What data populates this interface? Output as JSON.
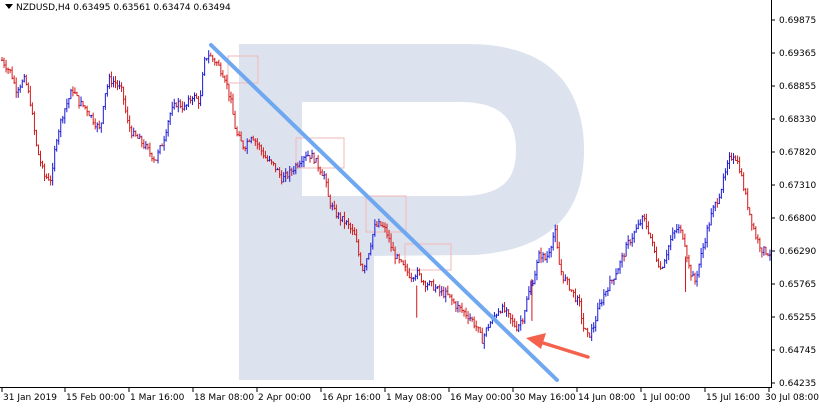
{
  "header": {
    "symbol_line": "NZDUSD,H4  0.63495 0.63561 0.63474 0.63494"
  },
  "colors": {
    "up_bar": "#1a1ad6",
    "down_bar": "#d11a1a",
    "trendline": "#6fa8f0",
    "arrow": "#f4614d",
    "rect_outline": "#f2b8b8",
    "watermark": "#dde3ee",
    "axis": "#000000"
  },
  "chart_data": {
    "type": "candlestick",
    "symbol": "NZDUSD",
    "timeframe": "H4",
    "yticks": [
      "0.69875",
      "0.69365",
      "0.68855",
      "0.68330",
      "0.67820",
      "0.67310",
      "0.66800",
      "0.66290",
      "0.65765",
      "0.65255",
      "0.64745",
      "0.64235"
    ],
    "ylim": [
      0.64235,
      0.69875
    ],
    "xticks": [
      "31 Jan 2019",
      "15 Feb 00:00",
      "1 Mar 16:00",
      "18 Mar 08:00",
      "2 Apr 00:00",
      "16 Apr 16:00",
      "1 May 08:00",
      "16 May 00:00",
      "30 May 16:00",
      "14 Jun 08:00",
      "1 Jul 00:00",
      "15 Jul 16:00",
      "30 Jul 08:00"
    ],
    "price_path": [
      [
        0.0,
        0.6925
      ],
      [
        0.012,
        0.6905
      ],
      [
        0.018,
        0.688
      ],
      [
        0.03,
        0.6895
      ],
      [
        0.037,
        0.686
      ],
      [
        0.045,
        0.679
      ],
      [
        0.055,
        0.6745
      ],
      [
        0.065,
        0.674
      ],
      [
        0.07,
        0.68
      ],
      [
        0.08,
        0.6845
      ],
      [
        0.092,
        0.688
      ],
      [
        0.1,
        0.686
      ],
      [
        0.11,
        0.685
      ],
      [
        0.12,
        0.683
      ],
      [
        0.128,
        0.6815
      ],
      [
        0.133,
        0.687
      ],
      [
        0.14,
        0.6895
      ],
      [
        0.148,
        0.689
      ],
      [
        0.157,
        0.6875
      ],
      [
        0.163,
        0.683
      ],
      [
        0.17,
        0.681
      ],
      [
        0.18,
        0.68
      ],
      [
        0.19,
        0.6785
      ],
      [
        0.2,
        0.677
      ],
      [
        0.21,
        0.68
      ],
      [
        0.218,
        0.684
      ],
      [
        0.228,
        0.686
      ],
      [
        0.238,
        0.685
      ],
      [
        0.248,
        0.687
      ],
      [
        0.258,
        0.686
      ],
      [
        0.263,
        0.692
      ],
      [
        0.268,
        0.6935
      ],
      [
        0.28,
        0.692
      ],
      [
        0.29,
        0.69
      ],
      [
        0.298,
        0.686
      ],
      [
        0.305,
        0.681
      ],
      [
        0.315,
        0.679
      ],
      [
        0.325,
        0.681
      ],
      [
        0.335,
        0.679
      ],
      [
        0.345,
        0.677
      ],
      [
        0.355,
        0.676
      ],
      [
        0.365,
        0.674
      ],
      [
        0.375,
        0.675
      ],
      [
        0.385,
        0.6765
      ],
      [
        0.395,
        0.678
      ],
      [
        0.405,
        0.6775
      ],
      [
        0.412,
        0.676
      ],
      [
        0.42,
        0.6745
      ],
      [
        0.425,
        0.671
      ],
      [
        0.432,
        0.669
      ],
      [
        0.44,
        0.668
      ],
      [
        0.45,
        0.667
      ],
      [
        0.46,
        0.665
      ],
      [
        0.465,
        0.662
      ],
      [
        0.47,
        0.66
      ],
      [
        0.478,
        0.663
      ],
      [
        0.485,
        0.6665
      ],
      [
        0.492,
        0.667
      ],
      [
        0.5,
        0.666
      ],
      [
        0.508,
        0.663
      ],
      [
        0.515,
        0.6615
      ],
      [
        0.525,
        0.66
      ],
      [
        0.532,
        0.659
      ],
      [
        0.54,
        0.6595
      ],
      [
        0.55,
        0.658
      ],
      [
        0.56,
        0.6575
      ],
      [
        0.57,
        0.6565
      ],
      [
        0.58,
        0.656
      ],
      [
        0.59,
        0.6545
      ],
      [
        0.6,
        0.6535
      ],
      [
        0.61,
        0.6525
      ],
      [
        0.618,
        0.651
      ],
      [
        0.625,
        0.649
      ],
      [
        0.632,
        0.651
      ],
      [
        0.64,
        0.6525
      ],
      [
        0.648,
        0.654
      ],
      [
        0.655,
        0.6535
      ],
      [
        0.663,
        0.652
      ],
      [
        0.67,
        0.651
      ],
      [
        0.678,
        0.6525
      ],
      [
        0.685,
        0.656
      ],
      [
        0.693,
        0.659
      ],
      [
        0.7,
        0.6625
      ],
      [
        0.708,
        0.6615
      ],
      [
        0.715,
        0.664
      ],
      [
        0.72,
        0.666
      ],
      [
        0.725,
        0.661
      ],
      [
        0.73,
        0.659
      ],
      [
        0.738,
        0.6575
      ],
      [
        0.745,
        0.656
      ],
      [
        0.752,
        0.6545
      ],
      [
        0.757,
        0.651
      ],
      [
        0.763,
        0.6495
      ],
      [
        0.77,
        0.651
      ],
      [
        0.777,
        0.654
      ],
      [
        0.785,
        0.6565
      ],
      [
        0.795,
        0.6585
      ],
      [
        0.805,
        0.661
      ],
      [
        0.815,
        0.664
      ],
      [
        0.825,
        0.666
      ],
      [
        0.835,
        0.668
      ],
      [
        0.842,
        0.666
      ],
      [
        0.85,
        0.6625
      ],
      [
        0.858,
        0.66
      ],
      [
        0.865,
        0.6625
      ],
      [
        0.872,
        0.665
      ],
      [
        0.88,
        0.6665
      ],
      [
        0.888,
        0.665
      ],
      [
        0.895,
        0.66
      ],
      [
        0.902,
        0.658
      ],
      [
        0.91,
        0.662
      ],
      [
        0.918,
        0.666
      ],
      [
        0.925,
        0.669
      ],
      [
        0.932,
        0.671
      ],
      [
        0.94,
        0.674
      ],
      [
        0.947,
        0.677
      ],
      [
        0.953,
        0.678
      ],
      [
        0.96,
        0.676
      ],
      [
        0.967,
        0.672
      ],
      [
        0.975,
        0.668
      ],
      [
        0.982,
        0.665
      ],
      [
        0.99,
        0.663
      ],
      [
        1.0,
        0.6625
      ]
    ]
  }
}
